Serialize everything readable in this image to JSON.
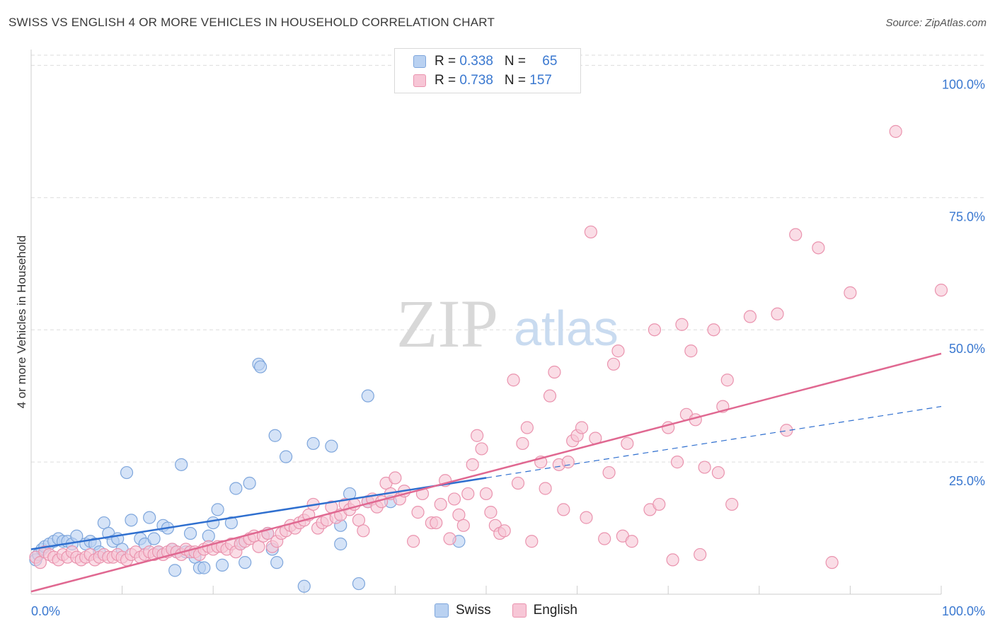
{
  "title": "SWISS VS ENGLISH 4 OR MORE VEHICLES IN HOUSEHOLD CORRELATION CHART",
  "source": "Source: ZipAtlas.com",
  "watermark": {
    "zip": "ZIP",
    "atlas": "atlas"
  },
  "legend": {
    "swiss": {
      "r_label": "R = ",
      "r_value": "0.338",
      "n_label": "N = ",
      "n_value": "65"
    },
    "english": {
      "r_label": "R = ",
      "r_value": "0.738",
      "n_label": "N = ",
      "n_value": "157"
    }
  },
  "bottom_legend": {
    "swiss": "Swiss",
    "english": "English"
  },
  "colors": {
    "swiss_fill": "#b9d1f1",
    "swiss_stroke": "#7ea6dc",
    "swiss_line": "#2f6fcf",
    "english_fill": "#f7c6d6",
    "english_stroke": "#ea93ae",
    "english_line": "#e06891",
    "tick_label": "#3a78d0",
    "grid": "#dddddd"
  },
  "chart_data": {
    "type": "scatter",
    "title": "SWISS VS ENGLISH 4 OR MORE VEHICLES IN HOUSEHOLD CORRELATION CHART",
    "xlabel": "",
    "ylabel": "4 or more Vehicles in Household",
    "xlim": [
      0,
      100
    ],
    "ylim": [
      0,
      103
    ],
    "x_tick_labels": [
      "0.0%",
      "100.0%"
    ],
    "y_ticks": [
      25,
      50,
      75,
      100
    ],
    "y_tick_labels": [
      "25.0%",
      "50.0%",
      "75.0%",
      "100.0%"
    ],
    "grid": true,
    "series": [
      {
        "name": "Swiss",
        "points": [
          [
            0.5,
            6.5
          ],
          [
            0.8,
            7.5
          ],
          [
            1.2,
            8.5
          ],
          [
            1.5,
            9
          ],
          [
            2,
            9.5
          ],
          [
            2.5,
            10
          ],
          [
            3,
            10.5
          ],
          [
            3.5,
            10
          ],
          [
            4,
            10
          ],
          [
            4.5,
            9.5
          ],
          [
            5,
            11
          ],
          [
            6,
            9.5
          ],
          [
            6.5,
            10
          ],
          [
            7,
            9.5
          ],
          [
            7.5,
            8
          ],
          [
            8,
            13.5
          ],
          [
            8.5,
            11.5
          ],
          [
            9,
            10
          ],
          [
            9.5,
            10.5
          ],
          [
            10,
            8.5
          ],
          [
            10.5,
            23
          ],
          [
            11,
            14
          ],
          [
            12,
            10.5
          ],
          [
            12.5,
            9.5
          ],
          [
            13,
            14.5
          ],
          [
            13.5,
            10.5
          ],
          [
            14,
            8
          ],
          [
            14.5,
            13
          ],
          [
            15,
            12.5
          ],
          [
            15.5,
            8.5
          ],
          [
            15.8,
            4.5
          ],
          [
            16,
            8
          ],
          [
            16.5,
            24.5
          ],
          [
            17,
            8
          ],
          [
            17.5,
            11.5
          ],
          [
            18,
            7
          ],
          [
            18.5,
            5
          ],
          [
            19,
            5
          ],
          [
            19.5,
            11
          ],
          [
            20,
            13.5
          ],
          [
            20.5,
            16
          ],
          [
            21,
            5.5
          ],
          [
            22,
            13.5
          ],
          [
            22.5,
            20
          ],
          [
            23,
            9.5
          ],
          [
            23.5,
            6
          ],
          [
            24,
            21
          ],
          [
            25,
            43.5
          ],
          [
            25.2,
            43
          ],
          [
            26,
            11.5
          ],
          [
            26.5,
            8.5
          ],
          [
            26.8,
            30
          ],
          [
            27,
            6
          ],
          [
            28,
            26
          ],
          [
            30,
            1.5
          ],
          [
            31,
            28.5
          ],
          [
            33,
            28
          ],
          [
            34,
            13
          ],
          [
            34,
            9.5
          ],
          [
            36,
            2
          ],
          [
            37,
            37.5
          ],
          [
            37,
            17.5
          ],
          [
            35,
            19
          ],
          [
            39.5,
            17.5
          ],
          [
            47,
            10
          ]
        ],
        "trend": {
          "x": [
            0,
            50
          ],
          "y": [
            8.5,
            22
          ]
        },
        "trend_extension": {
          "x": [
            50,
            100
          ],
          "y": [
            22,
            35.5
          ]
        }
      },
      {
        "name": "English",
        "points": [
          [
            0.5,
            7
          ],
          [
            1,
            6
          ],
          [
            1.5,
            8
          ],
          [
            2,
            7.5
          ],
          [
            2.5,
            7
          ],
          [
            3,
            6.5
          ],
          [
            3.5,
            7.5
          ],
          [
            4,
            7
          ],
          [
            4.5,
            8
          ],
          [
            5,
            7
          ],
          [
            5.5,
            6.5
          ],
          [
            6,
            7
          ],
          [
            6.5,
            7.5
          ],
          [
            7,
            6.5
          ],
          [
            7.5,
            7
          ],
          [
            8,
            7.5
          ],
          [
            8.5,
            7
          ],
          [
            9,
            7
          ],
          [
            9.5,
            7.5
          ],
          [
            10,
            7
          ],
          [
            10.5,
            6.5
          ],
          [
            11,
            7.5
          ],
          [
            11.5,
            8
          ],
          [
            12,
            7
          ],
          [
            12.5,
            7.5
          ],
          [
            13,
            8
          ],
          [
            13.5,
            7.5
          ],
          [
            14,
            8
          ],
          [
            14.5,
            7.5
          ],
          [
            15,
            8
          ],
          [
            15.5,
            8.5
          ],
          [
            16,
            8
          ],
          [
            16.5,
            7.5
          ],
          [
            17,
            8.5
          ],
          [
            17.5,
            8
          ],
          [
            18,
            8
          ],
          [
            18.5,
            7.5
          ],
          [
            19,
            8.5
          ],
          [
            19.5,
            9
          ],
          [
            20,
            8.5
          ],
          [
            20.5,
            9
          ],
          [
            21,
            9
          ],
          [
            21.5,
            8.5
          ],
          [
            22,
            9.5
          ],
          [
            22.5,
            8
          ],
          [
            23,
            9.5
          ],
          [
            23.5,
            10
          ],
          [
            24,
            10.5
          ],
          [
            24.5,
            11
          ],
          [
            25,
            9
          ],
          [
            25.5,
            11
          ],
          [
            26,
            11.5
          ],
          [
            26.5,
            9
          ],
          [
            27,
            10
          ],
          [
            27.5,
            11.5
          ],
          [
            28,
            12
          ],
          [
            28.5,
            13
          ],
          [
            29,
            12.5
          ],
          [
            29.5,
            13.5
          ],
          [
            30,
            14
          ],
          [
            30.5,
            15
          ],
          [
            31,
            17
          ],
          [
            31.5,
            12.5
          ],
          [
            32,
            13.5
          ],
          [
            32.5,
            14
          ],
          [
            33,
            16.5
          ],
          [
            33.5,
            14.5
          ],
          [
            34,
            15
          ],
          [
            34.5,
            17
          ],
          [
            35,
            16
          ],
          [
            35.5,
            17
          ],
          [
            36,
            14
          ],
          [
            36.5,
            12
          ],
          [
            37,
            17.5
          ],
          [
            37.5,
            18
          ],
          [
            38,
            16.5
          ],
          [
            38.5,
            17.5
          ],
          [
            39,
            21
          ],
          [
            39.5,
            19
          ],
          [
            40,
            22
          ],
          [
            40.5,
            18
          ],
          [
            41,
            19.5
          ],
          [
            42,
            10
          ],
          [
            42.5,
            15.5
          ],
          [
            43,
            19
          ],
          [
            44,
            13.5
          ],
          [
            44.5,
            13.5
          ],
          [
            45,
            17
          ],
          [
            45.5,
            21.5
          ],
          [
            46,
            10.5
          ],
          [
            46.5,
            18
          ],
          [
            47,
            15
          ],
          [
            47.5,
            13
          ],
          [
            48,
            19
          ],
          [
            48.5,
            24.5
          ],
          [
            49,
            30
          ],
          [
            49.5,
            27.5
          ],
          [
            50,
            19
          ],
          [
            50.5,
            15.5
          ],
          [
            51,
            13
          ],
          [
            51.5,
            11.5
          ],
          [
            52,
            12
          ],
          [
            53,
            40.5
          ],
          [
            53.5,
            21
          ],
          [
            54,
            28.5
          ],
          [
            54.5,
            31.5
          ],
          [
            55,
            10
          ],
          [
            56,
            25
          ],
          [
            56.5,
            20
          ],
          [
            57,
            37.5
          ],
          [
            57.5,
            42
          ],
          [
            58,
            24.5
          ],
          [
            58.5,
            16
          ],
          [
            59,
            25
          ],
          [
            59.5,
            29
          ],
          [
            60,
            30
          ],
          [
            60.5,
            31.5
          ],
          [
            61,
            14.5
          ],
          [
            61.5,
            68.5
          ],
          [
            62,
            29.5
          ],
          [
            63,
            10.5
          ],
          [
            63.5,
            23
          ],
          [
            64,
            43.5
          ],
          [
            64.5,
            46
          ],
          [
            65,
            11
          ],
          [
            65.5,
            28.5
          ],
          [
            66,
            10
          ],
          [
            68,
            16
          ],
          [
            68.5,
            50
          ],
          [
            69,
            17
          ],
          [
            70,
            31.5
          ],
          [
            70.5,
            6.5
          ],
          [
            71,
            25
          ],
          [
            71.5,
            51
          ],
          [
            72,
            34
          ],
          [
            72.5,
            46
          ],
          [
            73,
            33
          ],
          [
            73.5,
            7.5
          ],
          [
            74,
            24
          ],
          [
            75,
            50
          ],
          [
            75.5,
            23
          ],
          [
            76,
            35.5
          ],
          [
            76.5,
            40.5
          ],
          [
            77,
            17
          ],
          [
            79,
            52.5
          ],
          [
            82,
            53
          ],
          [
            83,
            31
          ],
          [
            84,
            68
          ],
          [
            86.5,
            65.5
          ],
          [
            88,
            6
          ],
          [
            90,
            57
          ],
          [
            95,
            87.5
          ],
          [
            100,
            57.5
          ]
        ],
        "trend": {
          "x": [
            0,
            100
          ],
          "y": [
            0.5,
            45.5
          ]
        }
      }
    ]
  }
}
